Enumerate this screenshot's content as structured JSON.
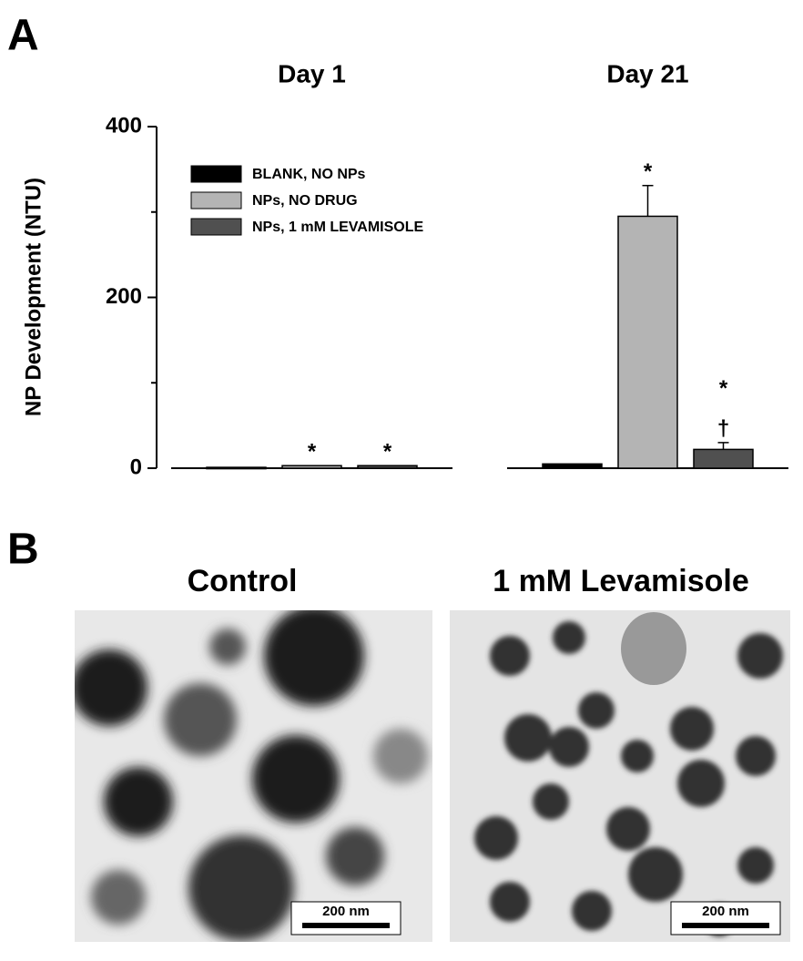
{
  "chart_data": {
    "type": "bar",
    "panel_label": "A",
    "y_label": "NP Development (NTU)",
    "categories": [
      "Day 1",
      "Day 21"
    ],
    "series": [
      {
        "name": "BLANK, NO NPs",
        "color": "#000000",
        "values": [
          1,
          5
        ],
        "errors": [
          null,
          null
        ],
        "marks": [
          [],
          []
        ]
      },
      {
        "name": "NPs, NO DRUG",
        "color": "#b4b4b4",
        "values": [
          3,
          295
        ],
        "errors": [
          null,
          36
        ],
        "marks": [
          [
            "*"
          ],
          [
            "*"
          ]
        ]
      },
      {
        "name": "NPs, 1 mM LEVAMISOLE",
        "color": "#505050",
        "values": [
          3,
          22
        ],
        "errors": [
          null,
          8
        ],
        "marks": [
          [
            "*"
          ],
          [
            "*",
            "†"
          ]
        ]
      }
    ],
    "ylim": [
      0,
      400
    ],
    "yticks": [
      0,
      200,
      400
    ],
    "yminor": [
      100,
      300
    ],
    "legend": "top-left"
  },
  "images": {
    "panel_label": "B",
    "panels": [
      {
        "title": "Control",
        "scale_bar": "200 nm"
      },
      {
        "title": "1 mM Levamisole",
        "scale_bar": "200 nm"
      }
    ]
  }
}
